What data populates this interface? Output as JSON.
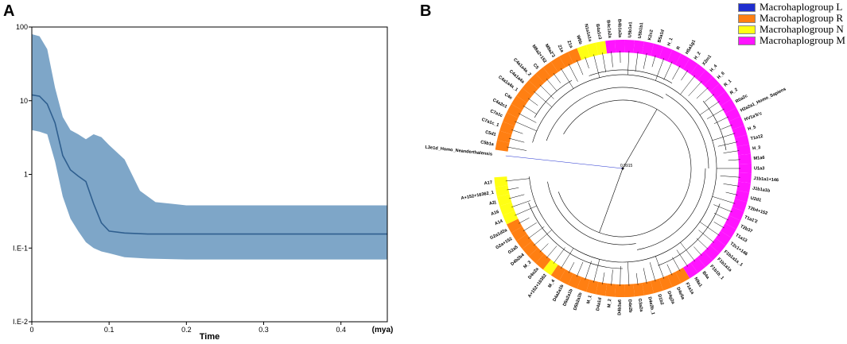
{
  "panel_a": {
    "letter": "A",
    "chart_data": {
      "type": "area",
      "title": "",
      "xlabel": "Time",
      "xunit": "(mya)",
      "ylabel": "",
      "yscale": "log",
      "xlim": [
        0,
        0.46
      ],
      "ylim": [
        0.01,
        100
      ],
      "xticks": [
        0,
        0.1,
        0.2,
        0.3,
        0.4
      ],
      "xtick_labels": [
        "0",
        "0.1",
        "0.2",
        "0.3",
        "0.4"
      ],
      "yticks": [
        100,
        10,
        1,
        0.1,
        0.01
      ],
      "ytick_labels": [
        "100",
        "10",
        "1",
        "I.E-1",
        "I.E-2"
      ],
      "fill_color": "#7ea6c8",
      "line_color": "#2f5f8f",
      "series": [
        {
          "name": "median",
          "x": [
            0,
            0.01,
            0.02,
            0.03,
            0.04,
            0.05,
            0.06,
            0.07,
            0.08,
            0.09,
            0.1,
            0.12,
            0.15,
            0.2,
            0.3,
            0.46
          ],
          "values": [
            12,
            11.5,
            9,
            5,
            1.8,
            1.15,
            0.95,
            0.8,
            0.4,
            0.22,
            0.17,
            0.16,
            0.155,
            0.155,
            0.155,
            0.155
          ]
        },
        {
          "name": "upper_95hpd",
          "x": [
            0,
            0.01,
            0.02,
            0.03,
            0.04,
            0.05,
            0.06,
            0.07,
            0.08,
            0.09,
            0.1,
            0.12,
            0.14,
            0.16,
            0.18,
            0.2,
            0.3,
            0.46
          ],
          "values": [
            80,
            75,
            50,
            15,
            6,
            4,
            3.5,
            3,
            3.5,
            3.2,
            2.5,
            1.6,
            0.6,
            0.42,
            0.4,
            0.38,
            0.38,
            0.38
          ]
        },
        {
          "name": "lower_95hpd",
          "x": [
            0,
            0.01,
            0.02,
            0.03,
            0.04,
            0.05,
            0.06,
            0.07,
            0.08,
            0.09,
            0.1,
            0.12,
            0.15,
            0.2,
            0.3,
            0.46
          ],
          "values": [
            4,
            3.8,
            3.5,
            1.5,
            0.5,
            0.25,
            0.17,
            0.12,
            0.1,
            0.09,
            0.085,
            0.075,
            0.072,
            0.07,
            0.07,
            0.07
          ]
        }
      ]
    }
  },
  "panel_b": {
    "letter": "B",
    "legend": [
      {
        "label": "Macrohaplogroup L",
        "color": "#1f2ecf"
      },
      {
        "label": "Macrohaplogroup R",
        "color": "#ff7f12"
      },
      {
        "label": "Macrohaplogroup N",
        "color": "#ffff14"
      },
      {
        "label": "Macrohaplogroup M",
        "color": "#ff14ff"
      }
    ],
    "chart_data": {
      "type": "circular-tree",
      "title": "",
      "colors": {
        "L": "#1f2ecf",
        "R": "#ff7f12",
        "N": "#ffff14",
        "M": "#ff14ff"
      },
      "root_label": "0.9915",
      "taxa": [
        {
          "label": "L3e1d_Homo_Neanderthalensis",
          "group": "L"
        },
        {
          "label": "C5b1a",
          "group": "R"
        },
        {
          "label": "C5d1",
          "group": "R"
        },
        {
          "label": "C7a1c_1",
          "group": "R"
        },
        {
          "label": "C7a1c",
          "group": "R"
        },
        {
          "label": "C4a2c1",
          "group": "R"
        },
        {
          "label": "C4e",
          "group": "R"
        },
        {
          "label": "C4a1a4a_1",
          "group": "R"
        },
        {
          "label": "C4a1a4a",
          "group": "R"
        },
        {
          "label": "C4a1a4a_2",
          "group": "R"
        },
        {
          "label": "C5",
          "group": "R"
        },
        {
          "label": "M8a2+152",
          "group": "R"
        },
        {
          "label": "M8a2'3",
          "group": "R"
        },
        {
          "label": "Z1a",
          "group": "R"
        },
        {
          "label": "Z1a",
          "group": "R"
        },
        {
          "label": "W6b",
          "group": "N"
        },
        {
          "label": "N1a1a1a",
          "group": "N"
        },
        {
          "label": "B4a1c3",
          "group": "N"
        },
        {
          "label": "B4c1a2a",
          "group": "M"
        },
        {
          "label": "B4b1a3a",
          "group": "M"
        },
        {
          "label": "U5b1e1",
          "group": "M"
        },
        {
          "label": "U5b1b1",
          "group": "M"
        },
        {
          "label": "K2c2",
          "group": "M"
        },
        {
          "label": "B5a1d",
          "group": "M"
        },
        {
          "label": "H_1",
          "group": "M"
        },
        {
          "label": "R",
          "group": "M"
        },
        {
          "label": "H5a1g1",
          "group": "M"
        },
        {
          "label": "H_2",
          "group": "M"
        },
        {
          "label": "X2m1",
          "group": "M"
        },
        {
          "label": "H_4",
          "group": "M"
        },
        {
          "label": "H_6",
          "group": "M"
        },
        {
          "label": "R_1",
          "group": "M"
        },
        {
          "label": "R_2",
          "group": "M"
        },
        {
          "label": "R0a2c",
          "group": "M"
        },
        {
          "label": "H2a2a1_Homo_Sapiens",
          "group": "M"
        },
        {
          "label": "HV1a'b'c",
          "group": "M"
        },
        {
          "label": "H_5",
          "group": "M"
        },
        {
          "label": "T1a12",
          "group": "M"
        },
        {
          "label": "H_3",
          "group": "M"
        },
        {
          "label": "M1a6",
          "group": "M"
        },
        {
          "label": "U1a3",
          "group": "M"
        },
        {
          "label": "J1b1a1+146",
          "group": "M"
        },
        {
          "label": "J1b1a1b",
          "group": "M"
        },
        {
          "label": "U2d1",
          "group": "M"
        },
        {
          "label": "T2b4+152",
          "group": "M"
        },
        {
          "label": "T1a1'2",
          "group": "M"
        },
        {
          "label": "T2b37",
          "group": "M"
        },
        {
          "label": "T1a13",
          "group": "M"
        },
        {
          "label": "T2c1+146",
          "group": "M"
        },
        {
          "label": "F1b1a1a_1",
          "group": "M"
        },
        {
          "label": "F1b1a1a",
          "group": "M"
        },
        {
          "label": "F1b1b_1",
          "group": "M"
        },
        {
          "label": "B4a",
          "group": "M"
        },
        {
          "label": "N9a1",
          "group": "M"
        },
        {
          "label": "F1a1a",
          "group": "R"
        },
        {
          "label": "D4e5a",
          "group": "R"
        },
        {
          "label": "D4g2a",
          "group": "R"
        },
        {
          "label": "D1b2",
          "group": "R"
        },
        {
          "label": "D4e2b_1",
          "group": "R"
        },
        {
          "label": "G3a2a",
          "group": "R"
        },
        {
          "label": "D4e2b",
          "group": "R"
        },
        {
          "label": "D4b3a6",
          "group": "R"
        },
        {
          "label": "M_2",
          "group": "R"
        },
        {
          "label": "D4a1d",
          "group": "R"
        },
        {
          "label": "M_1",
          "group": "R"
        },
        {
          "label": "D5b2a1b",
          "group": "R"
        },
        {
          "label": "D5a2a1b",
          "group": "R"
        },
        {
          "label": "D4a2a1b",
          "group": "R"
        },
        {
          "label": "M_4",
          "group": "R"
        },
        {
          "label": "A+152+16362",
          "group": "N"
        },
        {
          "label": "D4o2a",
          "group": "R"
        },
        {
          "label": "M_3",
          "group": "R"
        },
        {
          "label": "D4b2b4",
          "group": "R"
        },
        {
          "label": "G2a5",
          "group": "R"
        },
        {
          "label": "G2a+152",
          "group": "R"
        },
        {
          "label": "G2a1d2a",
          "group": "R"
        },
        {
          "label": "A14",
          "group": "N"
        },
        {
          "label": "A16",
          "group": "N"
        },
        {
          "label": "A2j",
          "group": "N"
        },
        {
          "label": "A+152+16362_1",
          "group": "N"
        },
        {
          "label": "A17",
          "group": "N"
        }
      ]
    }
  }
}
